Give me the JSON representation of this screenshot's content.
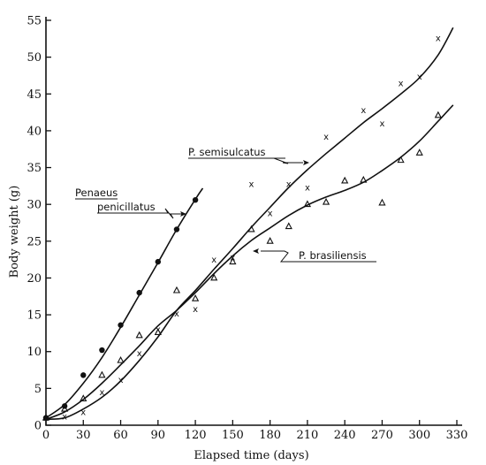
{
  "chart_data": {
    "type": "scatter",
    "xlabel": "Elapsed time (days)",
    "ylabel": "Body weight (g)",
    "xlim": [
      0,
      330
    ],
    "ylim": [
      0,
      55
    ],
    "xticks": [
      0,
      30,
      60,
      90,
      120,
      150,
      180,
      210,
      240,
      270,
      300,
      330
    ],
    "yticks": [
      0,
      5,
      10,
      15,
      20,
      25,
      30,
      35,
      40,
      45,
      50,
      55
    ],
    "grid": false,
    "legend": "none",
    "series": [
      {
        "name": "Penaeus penicillatus",
        "marker": "filled-circle",
        "points": [
          [
            0,
            1
          ],
          [
            15,
            2.6
          ],
          [
            30,
            6.8
          ],
          [
            45,
            10.2
          ],
          [
            60,
            13.6
          ],
          [
            75,
            18
          ],
          [
            90,
            22.2
          ],
          [
            105,
            26.6
          ],
          [
            120,
            30.6
          ]
        ],
        "curve": [
          [
            0,
            1
          ],
          [
            15,
            2.8
          ],
          [
            30,
            5.7
          ],
          [
            45,
            9.2
          ],
          [
            60,
            13.3
          ],
          [
            75,
            17.7
          ],
          [
            90,
            22.1
          ],
          [
            105,
            26.6
          ],
          [
            120,
            30.7
          ],
          [
            126,
            32.2
          ]
        ]
      },
      {
        "name": "P. semisulcatus",
        "marker": "x",
        "points": [
          [
            0,
            1
          ],
          [
            15,
            1.2
          ],
          [
            30,
            1.8
          ],
          [
            45,
            4.5
          ],
          [
            60,
            6.2
          ],
          [
            75,
            9.8
          ],
          [
            90,
            13
          ],
          [
            105,
            15.2
          ],
          [
            120,
            15.8
          ],
          [
            135,
            22.5
          ],
          [
            150,
            22.8
          ],
          [
            165,
            32.8
          ],
          [
            180,
            28.8
          ],
          [
            195,
            32.8
          ],
          [
            210,
            32.3
          ],
          [
            225,
            39.2
          ],
          [
            255,
            42.8
          ],
          [
            270,
            41
          ],
          [
            285,
            46.5
          ],
          [
            300,
            47.4
          ],
          [
            315,
            52.6
          ]
        ],
        "curve": [
          [
            0,
            0.8
          ],
          [
            15,
            1
          ],
          [
            30,
            2.2
          ],
          [
            45,
            3.8
          ],
          [
            60,
            6
          ],
          [
            75,
            8.8
          ],
          [
            90,
            12
          ],
          [
            105,
            15.6
          ],
          [
            120,
            18.3
          ],
          [
            135,
            21.2
          ],
          [
            150,
            24
          ],
          [
            165,
            26.9
          ],
          [
            180,
            29.6
          ],
          [
            195,
            32.3
          ],
          [
            210,
            34.7
          ],
          [
            225,
            36.9
          ],
          [
            240,
            39
          ],
          [
            255,
            41.1
          ],
          [
            270,
            43
          ],
          [
            285,
            45
          ],
          [
            300,
            47.2
          ],
          [
            315,
            50.3
          ],
          [
            327,
            54
          ]
        ]
      },
      {
        "name": "P. brasiliensis",
        "marker": "triangle",
        "points": [
          [
            0,
            1
          ],
          [
            15,
            2.2
          ],
          [
            30,
            3.6
          ],
          [
            45,
            6.8
          ],
          [
            60,
            8.8
          ],
          [
            75,
            12.2
          ],
          [
            90,
            12.6
          ],
          [
            105,
            18.3
          ],
          [
            120,
            17.2
          ],
          [
            135,
            20
          ],
          [
            150,
            22.2
          ],
          [
            165,
            26.6
          ],
          [
            180,
            25
          ],
          [
            195,
            27
          ],
          [
            210,
            30
          ],
          [
            225,
            30.3
          ],
          [
            240,
            33.2
          ],
          [
            255,
            33.3
          ],
          [
            270,
            30.2
          ],
          [
            285,
            36
          ],
          [
            300,
            37
          ],
          [
            315,
            42.1
          ]
        ],
        "curve": [
          [
            0,
            0.8
          ],
          [
            15,
            1.8
          ],
          [
            30,
            3.5
          ],
          [
            45,
            5.7
          ],
          [
            60,
            8.2
          ],
          [
            75,
            10.8
          ],
          [
            90,
            13.5
          ],
          [
            105,
            15.6
          ],
          [
            120,
            18
          ],
          [
            135,
            20.6
          ],
          [
            150,
            23
          ],
          [
            165,
            25.1
          ],
          [
            180,
            26.8
          ],
          [
            195,
            28.5
          ],
          [
            210,
            29.9
          ],
          [
            225,
            31
          ],
          [
            240,
            31.9
          ],
          [
            255,
            33
          ],
          [
            270,
            34.6
          ],
          [
            285,
            36.4
          ],
          [
            300,
            38.6
          ],
          [
            315,
            41.3
          ],
          [
            327,
            43.5
          ]
        ]
      }
    ],
    "annotations": [
      {
        "lines": [
          "Penaeus",
          "penicillatus"
        ],
        "series": "Penaeus penicillatus"
      },
      {
        "lines": [
          "P.  semisulcatus"
        ],
        "series": "P. semisulcatus"
      },
      {
        "lines": [
          "P.  brasiliensis"
        ],
        "series": "P. brasiliensis"
      }
    ]
  }
}
